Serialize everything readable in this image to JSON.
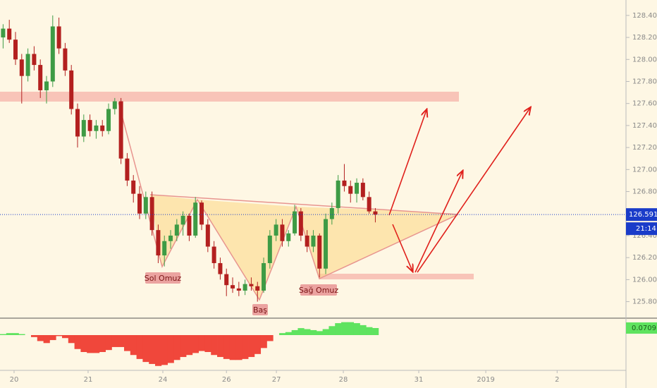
{
  "chart_data": [
    {
      "type": "candlestick",
      "x": [
        0,
        1,
        2,
        3,
        4,
        5,
        6,
        7,
        8,
        9,
        10,
        11,
        12,
        13,
        14,
        15,
        16,
        17,
        18,
        19,
        20,
        21,
        22,
        23,
        24,
        25,
        26,
        27,
        28,
        29,
        30,
        31,
        32,
        33,
        34,
        35,
        36,
        37,
        38,
        39,
        40,
        41,
        42,
        43,
        44,
        45,
        46,
        47,
        48,
        49,
        50,
        51,
        52,
        53,
        54,
        55,
        56,
        57,
        58,
        59,
        60
      ],
      "open": [
        128.2,
        128.28,
        128.18,
        128.0,
        127.85,
        128.05,
        127.95,
        127.72,
        127.8,
        128.3,
        128.1,
        127.9,
        127.55,
        127.3,
        127.45,
        127.35,
        127.4,
        127.35,
        127.55,
        127.62,
        127.1,
        126.9,
        126.78,
        126.6,
        126.75,
        126.45,
        126.22,
        126.35,
        126.4,
        126.5,
        126.58,
        126.4,
        126.7,
        126.5,
        126.3,
        126.15,
        126.05,
        125.95,
        125.92,
        125.9,
        125.96,
        125.94,
        125.9,
        126.15,
        126.4,
        126.5,
        126.35,
        126.42,
        126.62,
        126.4,
        126.3,
        126.4,
        126.1,
        126.55,
        126.65,
        126.9,
        126.85,
        126.78,
        126.88,
        126.75,
        126.62
      ],
      "high": [
        128.32,
        128.36,
        128.25,
        128.05,
        128.1,
        128.12,
        128.0,
        127.85,
        128.4,
        128.38,
        128.15,
        127.95,
        127.6,
        127.5,
        127.5,
        127.45,
        127.45,
        127.6,
        127.65,
        127.65,
        127.15,
        126.95,
        126.85,
        126.8,
        126.8,
        126.5,
        126.4,
        126.45,
        126.55,
        126.62,
        126.6,
        126.75,
        126.72,
        126.55,
        126.35,
        126.2,
        126.1,
        126.02,
        125.98,
        126.0,
        126.02,
        125.98,
        126.2,
        126.45,
        126.55,
        126.55,
        126.45,
        126.68,
        126.65,
        126.45,
        126.45,
        126.42,
        126.6,
        126.7,
        126.95,
        127.05,
        126.9,
        126.92,
        126.92,
        126.8,
        126.65
      ],
      "low": [
        128.1,
        128.15,
        127.95,
        127.6,
        127.8,
        127.9,
        127.65,
        127.6,
        127.75,
        128.05,
        127.85,
        127.5,
        127.2,
        127.25,
        127.3,
        127.28,
        127.3,
        127.32,
        127.5,
        127.05,
        126.85,
        126.7,
        126.55,
        126.55,
        126.4,
        126.15,
        126.12,
        126.28,
        126.35,
        126.4,
        126.35,
        126.38,
        126.45,
        126.25,
        126.1,
        126.0,
        125.85,
        125.88,
        125.85,
        125.86,
        125.9,
        125.8,
        125.88,
        126.1,
        126.35,
        126.3,
        126.3,
        126.4,
        126.35,
        126.25,
        126.25,
        126.02,
        126.05,
        126.5,
        126.6,
        126.8,
        126.7,
        126.7,
        126.72,
        126.6,
        126.52
      ],
      "close": [
        128.28,
        128.18,
        128.0,
        127.85,
        128.05,
        127.95,
        127.72,
        127.8,
        128.3,
        128.1,
        127.9,
        127.55,
        127.3,
        127.45,
        127.35,
        127.4,
        127.35,
        127.55,
        127.62,
        127.1,
        126.9,
        126.78,
        126.6,
        126.75,
        126.45,
        126.22,
        126.35,
        126.4,
        126.5,
        126.58,
        126.4,
        126.7,
        126.5,
        126.3,
        126.15,
        126.05,
        125.95,
        125.92,
        125.9,
        125.96,
        125.94,
        125.9,
        126.15,
        126.4,
        126.5,
        126.35,
        126.42,
        126.62,
        126.4,
        126.3,
        126.4,
        126.1,
        126.55,
        126.65,
        126.9,
        126.85,
        126.78,
        126.88,
        126.75,
        126.62,
        126.591
      ],
      "up_color": "#3e9b45",
      "down_color": "#b3201f",
      "xlim": [
        -0.5,
        100.4
      ],
      "xticks": [
        {
          "value": 1.77,
          "label": "20"
        },
        {
          "value": 13.7,
          "label": "21"
        },
        {
          "value": 25.75,
          "label": "24"
        },
        {
          "value": 36,
          "label": "26"
        },
        {
          "value": 44.05,
          "label": "27"
        },
        {
          "value": 54.84,
          "label": "28"
        },
        {
          "value": 67,
          "label": "31"
        },
        {
          "value": 77.8,
          "label": "2019"
        },
        {
          "value": 89.3,
          "label": "2"
        }
      ],
      "ylim": [
        125.65,
        128.54
      ],
      "yticks": [
        {
          "value": 128.4,
          "label": "128.400"
        },
        {
          "value": 128.2,
          "label": "128.200"
        },
        {
          "value": 128.0,
          "label": "128.000"
        },
        {
          "value": 127.8,
          "label": "127.800"
        },
        {
          "value": 127.6,
          "label": "127.600"
        },
        {
          "value": 127.4,
          "label": "127.400"
        },
        {
          "value": 127.2,
          "label": "127.200"
        },
        {
          "value": 127.0,
          "label": "127.000"
        },
        {
          "value": 126.8,
          "label": "126.800"
        },
        {
          "value": 126.4,
          "label": "126.400"
        },
        {
          "value": 126.2,
          "label": "126.200"
        },
        {
          "value": 126.0,
          "label": "126.000"
        },
        {
          "value": 125.8,
          "label": "125.800"
        }
      ],
      "price_color": "#1a3cc9",
      "countdown": "21:14",
      "annotations": [
        "Sol Omuz",
        "Baş",
        "Sağ Omuz"
      ]
    },
    {
      "type": "histogram",
      "values": [
        0.01,
        0.02,
        0.02,
        0.01,
        0.0,
        -0.02,
        -0.06,
        -0.08,
        -0.05,
        -0.01,
        -0.03,
        -0.08,
        -0.14,
        -0.17,
        -0.18,
        -0.18,
        -0.17,
        -0.15,
        -0.12,
        -0.12,
        -0.16,
        -0.2,
        -0.24,
        -0.27,
        -0.29,
        -0.31,
        -0.3,
        -0.28,
        -0.25,
        -0.22,
        -0.2,
        -0.18,
        -0.16,
        -0.17,
        -0.2,
        -0.22,
        -0.24,
        -0.25,
        -0.25,
        -0.24,
        -0.22,
        -0.19,
        -0.13,
        -0.06,
        0.0,
        0.02,
        0.03,
        0.05,
        0.07,
        0.06,
        0.05,
        0.04,
        0.06,
        0.09,
        0.12,
        0.13,
        0.13,
        0.12,
        0.1,
        0.08,
        0.0709
      ],
      "ylim": [
        -0.333,
        0.163
      ],
      "positive_color": "#5fe35f",
      "negative_color": "#f0473b"
    }
  ]
}
